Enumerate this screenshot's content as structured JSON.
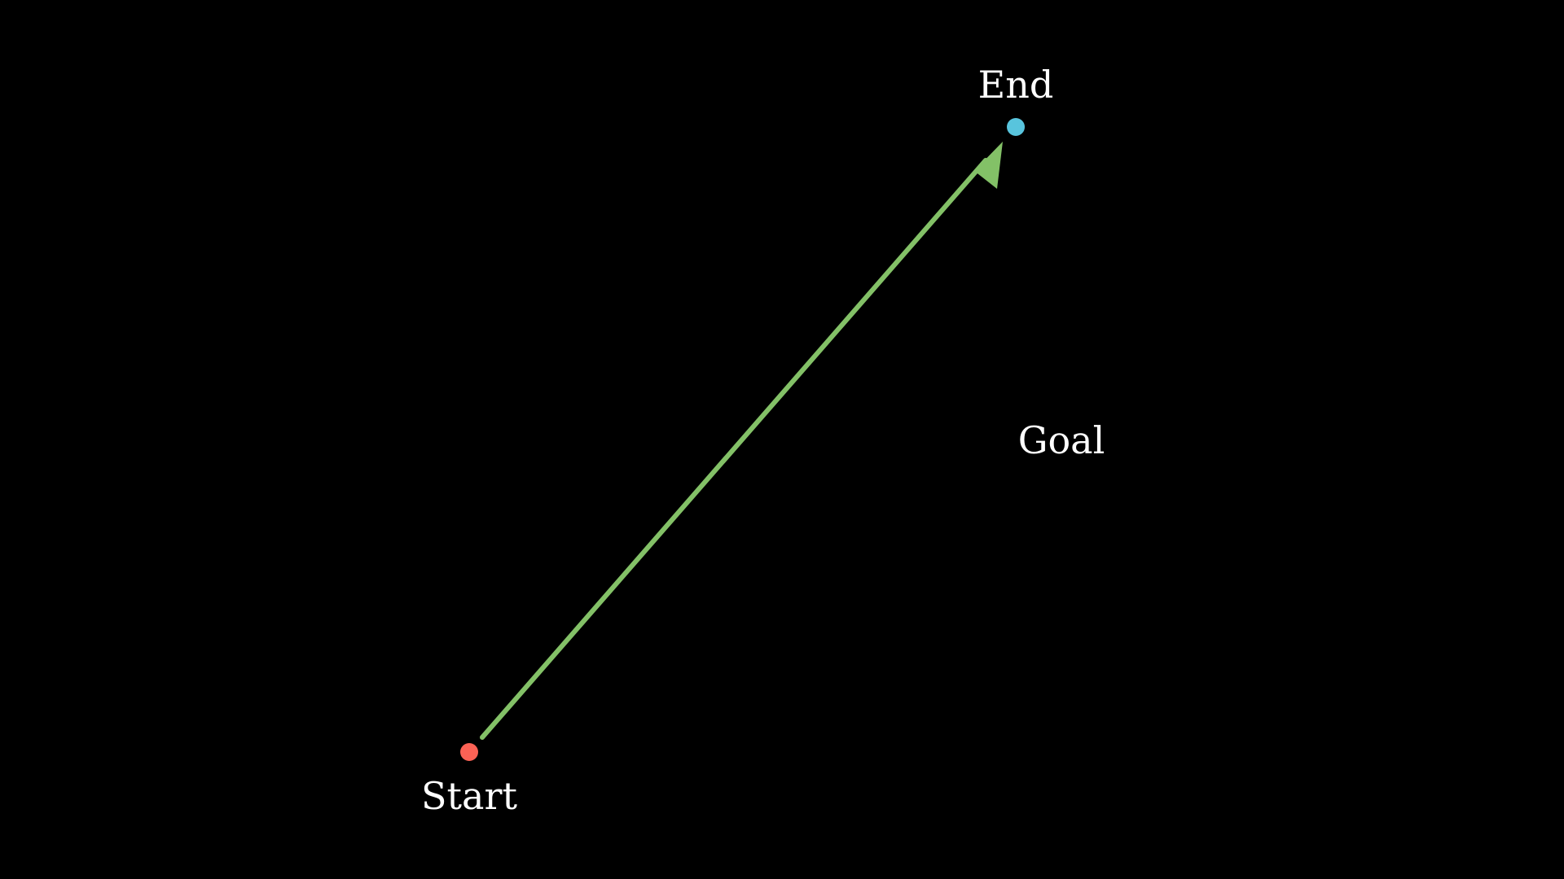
{
  "labels": {
    "start": "Start",
    "end": "End",
    "goal": "Goal"
  },
  "colors": {
    "background": "#000000",
    "start_point": "#fc6255",
    "end_point": "#58c4dd",
    "arrow": "#83c167",
    "text": "#ffffff"
  },
  "icons": {
    "start_point": "dot",
    "end_point": "dot",
    "arrow": "arrow"
  }
}
